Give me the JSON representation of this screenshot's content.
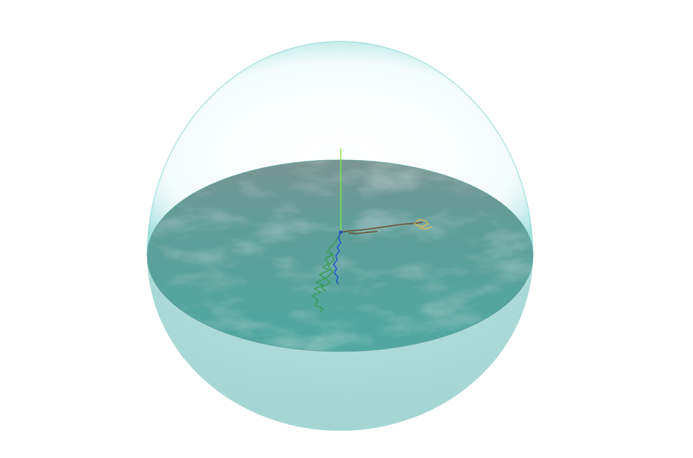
{
  "scene": {
    "background": "#ffffff",
    "colors": {
      "sphere_rim": "#7fd3d0",
      "sphere_lower": "#a9d9d7",
      "sphere_upper": "#eefaf9",
      "water_surface": "#5aa8a3",
      "water_dark": "#3f8d88",
      "vertical_axis": "#7ee84a",
      "track_blue": "#1f4fd6",
      "track_green": "#2e9a3a",
      "track_brown": "#6b4a2a",
      "track_yellow": "#d8b84a"
    },
    "icons": {
      "origin": "origin-marker-icon"
    }
  }
}
